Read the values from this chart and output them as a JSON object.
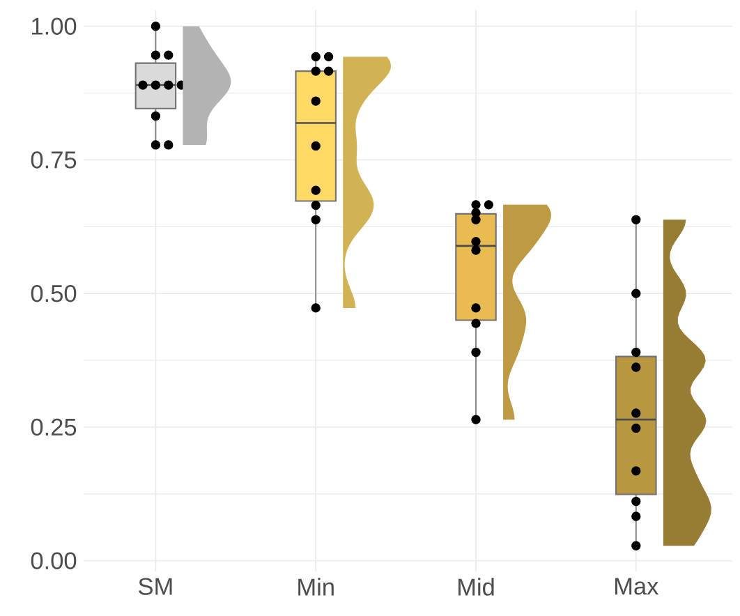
{
  "chart_data": {
    "type": "box",
    "categories": [
      "SM",
      "Min",
      "Mid",
      "Max"
    ],
    "colors": [
      "#dadada",
      "#ffd966",
      "#e8bc50",
      "#b8973e"
    ],
    "boxes": [
      {
        "low": 0.778,
        "q1": 0.846,
        "median": 0.89,
        "q3": 0.931,
        "high": 1.0
      },
      {
        "low": 0.473,
        "q1": 0.673,
        "median": 0.819,
        "q3": 0.916,
        "high": 0.946
      },
      {
        "low": 0.265,
        "q1": 0.45,
        "median": 0.589,
        "q3": 0.649,
        "high": 0.666
      },
      {
        "low": 0.028,
        "q1": 0.124,
        "median": 0.264,
        "q3": 0.382,
        "high": 0.638
      }
    ],
    "series": [
      {
        "type": "scatter",
        "color": "#000000",
        "marker": "circle",
        "x": [
          "SM",
          "SM",
          "SM",
          "SM",
          "SM",
          "SM",
          "SM",
          "SM",
          "SM",
          "SM",
          "Min",
          "Min",
          "Min",
          "Min",
          "Min",
          "Min",
          "Min",
          "Min",
          "Min",
          "Min",
          "Mid",
          "Mid",
          "Mid",
          "Mid",
          "Mid",
          "Mid",
          "Mid",
          "Mid",
          "Mid",
          "Mid",
          "Max",
          "Max",
          "Max",
          "Max",
          "Max",
          "Max",
          "Max",
          "Max",
          "Max",
          "Max"
        ],
        "values": [
          1.0,
          0.946,
          0.946,
          0.89,
          0.89,
          0.89,
          0.89,
          0.832,
          0.778,
          0.778,
          0.943,
          0.943,
          0.916,
          0.916,
          0.86,
          0.776,
          0.693,
          0.665,
          0.638,
          0.473,
          0.666,
          0.666,
          0.638,
          0.651,
          0.597,
          0.581,
          0.473,
          0.444,
          0.39,
          0.264,
          0.638,
          0.5,
          0.39,
          0.362,
          0.276,
          0.248,
          0.168,
          0.111,
          0.083,
          0.028
        ]
      }
    ],
    "ylim": [
      -0.02,
      1.03
    ],
    "yticks": [
      {
        "value": 0,
        "label": "0.00"
      },
      {
        "value": 0.25,
        "label": "0.25"
      },
      {
        "value": 0.5,
        "label": "0.50"
      },
      {
        "value": 0.75,
        "label": "0.75"
      },
      {
        "value": 1,
        "label": "1.00"
      }
    ],
    "grid": true
  }
}
